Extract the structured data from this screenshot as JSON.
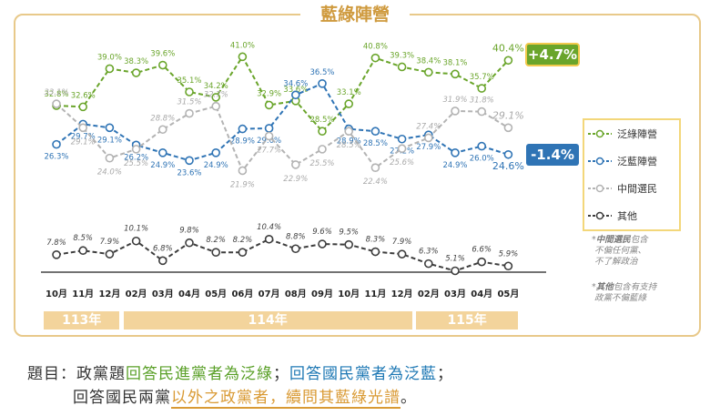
{
  "title": "藍綠陣營",
  "chart_data": {
    "type": "line",
    "categories": [
      "10月",
      "11月",
      "12月",
      "02月",
      "03月",
      "04月",
      "05月",
      "06月",
      "07月",
      "08月",
      "09月",
      "10月",
      "11月",
      "12月",
      "02月",
      "03月",
      "04月",
      "05月"
    ],
    "year_bands": [
      {
        "label": "113年",
        "from": 0,
        "to": 2
      },
      {
        "label": "114年",
        "from": 3,
        "to": 13
      },
      {
        "label": "115年",
        "from": 14,
        "to": 17
      }
    ],
    "series": [
      {
        "name": "泛綠陣營",
        "color": "#6aa52b",
        "style": "dashed",
        "values": [
          32.8,
          32.6,
          39.0,
          38.3,
          39.6,
          35.1,
          34.2,
          41.0,
          32.9,
          33.6,
          28.5,
          33.1,
          40.8,
          39.3,
          38.4,
          38.1,
          35.7,
          40.4
        ],
        "labels": [
          "32.8%",
          "32.6%",
          "39.0%",
          "38.3%",
          "39.6%",
          "35.1%",
          "34.2%",
          "41.0%",
          "32.9%",
          "33.6%",
          "28.5%",
          "33.1%",
          "40.8%",
          "39.3%",
          "38.4%",
          "38.1%",
          "35.7%",
          "40.4%"
        ],
        "change": "+4.7%"
      },
      {
        "name": "泛藍陣營",
        "color": "#2f74b5",
        "style": "dashed",
        "values": [
          26.3,
          29.7,
          29.1,
          26.2,
          24.9,
          23.6,
          24.9,
          28.9,
          29.0,
          34.6,
          36.5,
          28.9,
          28.5,
          27.2,
          27.9,
          24.9,
          26.0,
          24.6
        ],
        "labels": [
          "26.3%",
          "29.7%",
          "29.1%",
          "26.2%",
          "24.9%",
          "23.6%",
          "24.9%",
          "28.9%",
          "29.0%",
          "34.6%",
          "36.5%",
          "28.9%",
          "28.5%",
          "27.2%",
          "27.9%",
          "24.9%",
          "26.0%",
          "24.6%"
        ],
        "change": "-1.4%"
      },
      {
        "name": "中間選民",
        "color": "#b3b3b3",
        "style": "dashed",
        "values": [
          33.1,
          29.1,
          24.0,
          25.5,
          28.8,
          31.5,
          32.7,
          21.9,
          27.7,
          22.9,
          25.5,
          28.5,
          22.4,
          25.6,
          27.4,
          31.9,
          31.8,
          29.1
        ],
        "labels": [
          "33.1%",
          "29.1%",
          "24.0%",
          "25.5%",
          "28.8%",
          "31.5%",
          "32.7%",
          "21.9%",
          "27.7%",
          "22.9%",
          "25.5%",
          "28.5%",
          "22.4%",
          "25.6%",
          "27.4%",
          "31.9%",
          "31.8%",
          "29.1%"
        ]
      },
      {
        "name": "其他",
        "color": "#3d3d3d",
        "style": "dashed",
        "values": [
          7.8,
          8.5,
          7.9,
          10.1,
          6.8,
          9.8,
          8.2,
          8.2,
          10.4,
          8.8,
          9.6,
          9.5,
          8.3,
          7.9,
          6.3,
          5.1,
          6.6,
          5.9
        ],
        "labels": [
          "7.8%",
          "8.5%",
          "7.9%",
          "10.1%",
          "6.8%",
          "9.8%",
          "8.2%",
          "8.2%",
          "10.4%",
          "8.8%",
          "9.6%",
          "9.5%",
          "8.3%",
          "7.9%",
          "6.3%",
          "5.1%",
          "6.6%",
          "5.9%"
        ]
      }
    ]
  },
  "notes": {
    "middle": {
      "term": "中間選民",
      "text": "包含",
      "lines": [
        "不偏任何黨、",
        "不了解政治"
      ]
    },
    "other": {
      "term": "其他",
      "text": "包含有支持",
      "lines": [
        "政黨不偏藍綠"
      ]
    }
  },
  "footer": {
    "line1": [
      {
        "t": "題目：政黨題",
        "c": ""
      },
      {
        "t": "回答民進黨者為泛綠",
        "c": "green"
      },
      {
        "t": "；",
        "c": ""
      },
      {
        "t": "回答國民黨者為泛藍",
        "c": "blue"
      },
      {
        "t": "；",
        "c": ""
      }
    ],
    "line2": [
      {
        "t": "回答國民兩黨",
        "c": ""
      },
      {
        "t": "以外之政黨者，續問其藍綠光譜",
        "c": "ul"
      },
      {
        "t": "。",
        "c": ""
      }
    ]
  }
}
